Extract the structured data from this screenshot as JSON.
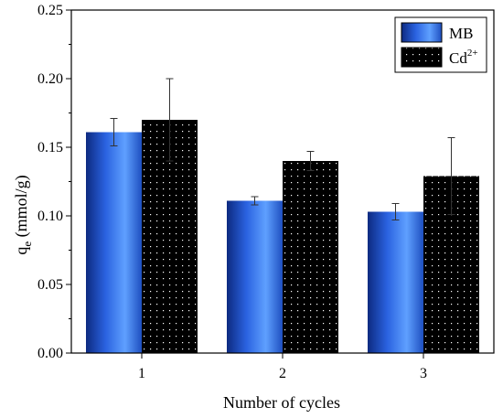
{
  "chart_data": {
    "type": "bar",
    "categories": [
      "1",
      "2",
      "3"
    ],
    "series": [
      {
        "name": "MB",
        "name_base": "MB",
        "name_sup": "",
        "values": [
          0.161,
          0.111,
          0.103
        ],
        "errors": [
          0.01,
          0.003,
          0.006
        ],
        "color": "#2f62d8"
      },
      {
        "name": "Cd2+",
        "name_base": "Cd",
        "name_sup": "2+",
        "values": [
          0.17,
          0.14,
          0.129
        ],
        "errors": [
          0.03,
          0.007,
          0.028
        ],
        "color": "#000000"
      }
    ],
    "xlabel": "Number of cycles",
    "ylabel": {
      "base": "q",
      "sub": "e",
      "rest": " (mmol/g)"
    },
    "ylim": [
      0,
      0.25
    ],
    "yticks": [
      "0.00",
      "0.05",
      "0.10",
      "0.15",
      "0.20",
      "0.25"
    ],
    "legend_position": "top-right",
    "grid": false
  }
}
